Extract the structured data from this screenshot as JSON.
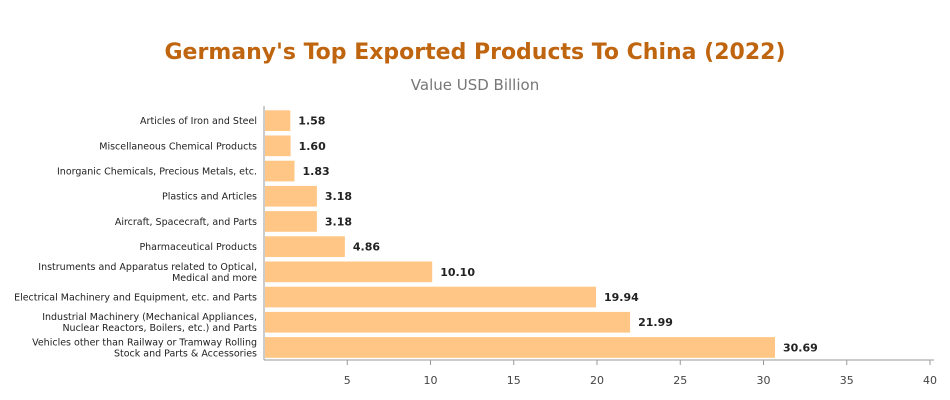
{
  "chart_data": {
    "type": "bar",
    "orientation": "horizontal",
    "title": "Germany's Top Exported Products To China (2022)",
    "subtitle": "Value USD Billion",
    "categories": [
      "Articles of Iron and Steel",
      "Miscellaneous Chemical Products",
      "Inorganic Chemicals, Precious Metals, etc.",
      "Plastics and Articles",
      "Aircraft, Spacecraft, and Parts",
      "Pharmaceutical Products",
      "Instruments and Apparatus related to Optical, Medical and more",
      "Electrical Machinery and Equipment, etc. and Parts",
      "Industrial Machinery (Mechanical Appliances, Nuclear Reactors, Boilers, etc.) and Parts",
      "Vehicles other than Railway or Tramway Rolling Stock and Parts & Accessories"
    ],
    "category_lines": [
      [
        "Articles of Iron and Steel"
      ],
      [
        "Miscellaneous Chemical Products"
      ],
      [
        "Inorganic Chemicals, Precious Metals, etc."
      ],
      [
        "Plastics and Articles"
      ],
      [
        "Aircraft, Spacecraft, and Parts"
      ],
      [
        "Pharmaceutical Products"
      ],
      [
        "Instruments and Apparatus related to Optical,",
        "Medical and more"
      ],
      [
        "Electrical Machinery and Equipment, etc. and Parts"
      ],
      [
        "Industrial Machinery (Mechanical Appliances,",
        "Nuclear Reactors, Boilers, etc.) and Parts"
      ],
      [
        "Vehicles other than Railway or Tramway Rolling",
        "Stock and Parts & Accessories"
      ]
    ],
    "values": [
      1.58,
      1.6,
      1.83,
      3.18,
      3.18,
      4.86,
      10.1,
      19.94,
      21.99,
      30.69
    ],
    "value_labels": [
      "1.58",
      "1.60",
      "1.83",
      "3.18",
      "3.18",
      "4.86",
      "10.10",
      "19.94",
      "21.99",
      "30.69"
    ],
    "xlim": [
      0,
      40
    ],
    "xticks": [
      5,
      10,
      15,
      20,
      25,
      30,
      35,
      40
    ],
    "xlabel": "",
    "ylabel": "",
    "grid": false,
    "legend": "none",
    "colors": {
      "bar": "#ffc685",
      "title": "#c0650f",
      "axis": "#999999"
    }
  }
}
